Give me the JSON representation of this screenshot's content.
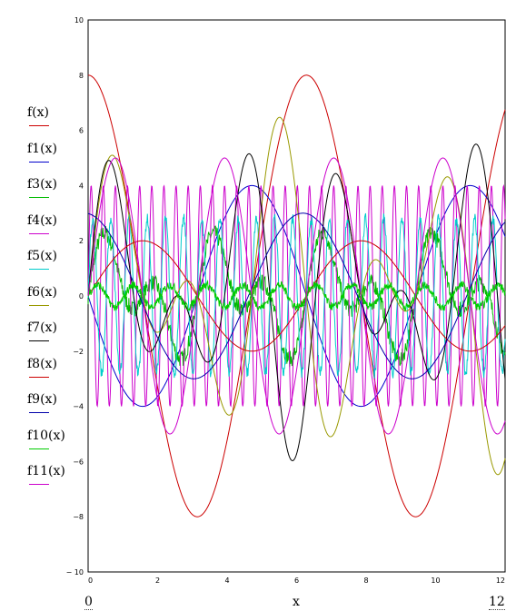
{
  "chart_data": {
    "type": "line",
    "xlim": [
      0,
      12
    ],
    "ylim": [
      -10,
      10
    ],
    "x_ticks": [
      "0",
      "2",
      "4",
      "6",
      "8",
      "10",
      "12"
    ],
    "y_ticks": [
      "10",
      "8",
      "6",
      "4",
      "2",
      "0",
      "−2",
      "−4",
      "−6",
      "−8",
      "− 10"
    ],
    "xlabel": "x",
    "x_min_label": "0",
    "x_max_label": "12",
    "grid": false,
    "legend_position": "left",
    "series": [
      {
        "name": "f(x)",
        "color": "#cc0000",
        "kind": "cos",
        "amp": 8,
        "freq": 1,
        "noise": 0
      },
      {
        "name": "f1(x)",
        "color": "#0000cc",
        "kind": "cos",
        "amp": 4,
        "freq": 1,
        "phase": 1.57,
        "noise": 0
      },
      {
        "name": "f3(x)",
        "color": "#00bb00",
        "kind": "sinsq",
        "amp": 2.6,
        "freq": 3,
        "noise": 0.3
      },
      {
        "name": "f4(x)",
        "color": "#cc00cc",
        "kind": "sin",
        "amp": 4,
        "freq": 18,
        "noise": 0
      },
      {
        "name": "f5(x)",
        "color": "#00cccc",
        "kind": "sin",
        "amp": 2.8,
        "freq": 12,
        "noise": 0.2
      },
      {
        "name": "f6(x)",
        "color": "#999900",
        "kind": "sinmix",
        "amp": 6.5,
        "freq": 2,
        "noise": 0
      },
      {
        "name": "f7(x)",
        "color": "#000000",
        "kind": "sinmix",
        "amp": 6,
        "freq": 2.4,
        "noise": 0
      },
      {
        "name": "f8(x)",
        "color": "#cc0000",
        "kind": "sin",
        "amp": 2,
        "freq": 1,
        "noise": 0
      },
      {
        "name": "f9(x)",
        "color": "#0000aa",
        "kind": "cos",
        "amp": 3,
        "freq": 1,
        "phase": 0.1,
        "noise": 0
      },
      {
        "name": "f10(x)",
        "color": "#00cc00",
        "kind": "sin",
        "amp": 0.4,
        "freq": 6,
        "noise": 0.15
      },
      {
        "name": "f11(x)",
        "color": "#cc00cc",
        "kind": "sin",
        "amp": 5,
        "freq": 2,
        "noise": 0
      }
    ]
  }
}
